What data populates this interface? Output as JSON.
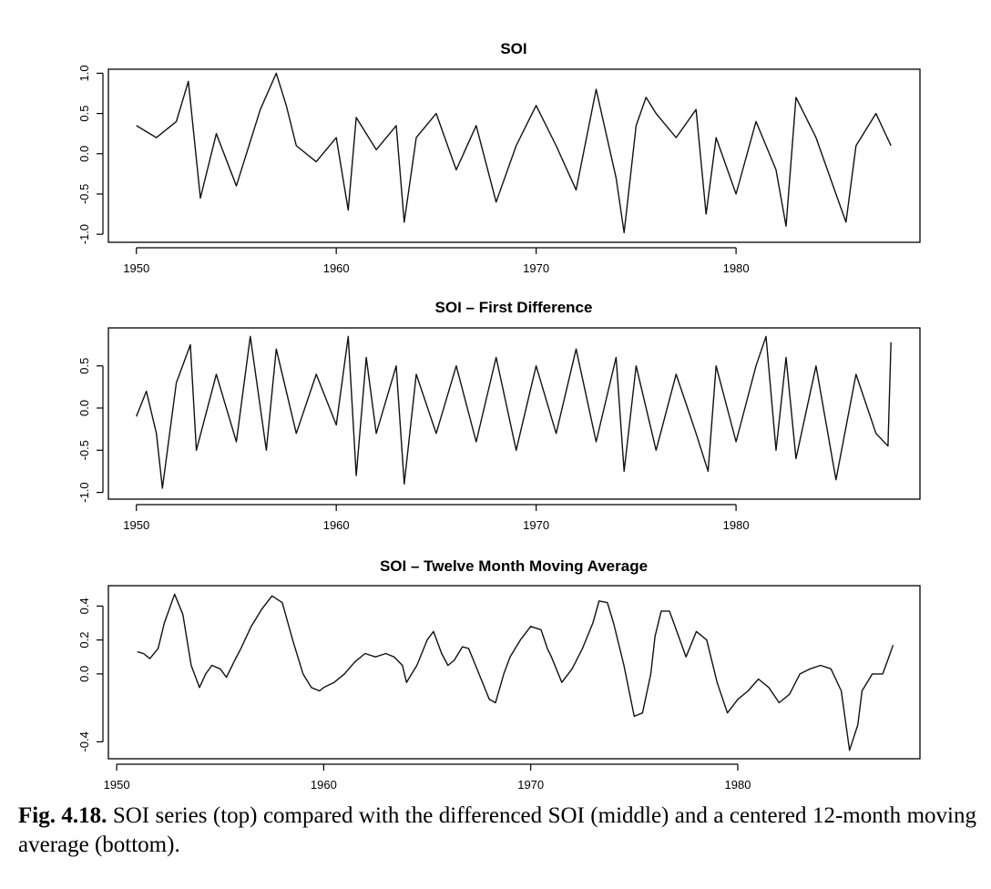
{
  "chart_data": [
    {
      "type": "line",
      "title": "SOI",
      "xlabel": "",
      "ylabel": "",
      "xlim": [
        1950,
        1987.75
      ],
      "ylim": [
        -1.0,
        1.0
      ],
      "x_ticks": [
        "1950",
        "1960",
        "1970",
        "1980"
      ],
      "y_ticks": [
        "-1.0",
        "-0.5",
        "0.0",
        "0.5",
        "1.0"
      ],
      "grid": false,
      "series": [
        {
          "x": [
            1950.0,
            1951.0,
            1952.0,
            1952.6,
            1953.2,
            1954.0,
            1955.0,
            1956.2,
            1957.0,
            1957.5,
            1958.0,
            1959.0,
            1960.0,
            1960.6,
            1961.0,
            1962.0,
            1963.0,
            1963.4,
            1964.0,
            1965.0,
            1966.0,
            1967.0,
            1968.0,
            1969.0,
            1970.0,
            1971.0,
            1972.0,
            1973.0,
            1974.0,
            1974.4,
            1975.0,
            1975.5,
            1976.0,
            1977.0,
            1978.0,
            1978.5,
            1979.0,
            1980.0,
            1981.0,
            1982.0,
            1982.5,
            1983.0,
            1984.0,
            1985.0,
            1985.5,
            1986.0,
            1987.0,
            1987.75
          ],
          "values": [
            0.35,
            0.2,
            0.4,
            0.9,
            -0.55,
            0.25,
            -0.4,
            0.55,
            1.0,
            0.6,
            0.1,
            -0.1,
            0.2,
            -0.7,
            0.45,
            0.05,
            0.35,
            -0.85,
            0.2,
            0.5,
            -0.2,
            0.35,
            -0.6,
            0.1,
            0.6,
            0.1,
            -0.45,
            0.8,
            -0.3,
            -0.98,
            0.35,
            0.7,
            0.5,
            0.2,
            0.55,
            -0.75,
            0.2,
            -0.5,
            0.4,
            -0.2,
            -0.9,
            0.7,
            0.2,
            -0.5,
            -0.85,
            0.1,
            0.5,
            0.1
          ]
        }
      ]
    },
    {
      "type": "line",
      "title": "SOI – First Difference",
      "xlabel": "",
      "ylabel": "",
      "xlim": [
        1950,
        1987.75
      ],
      "ylim": [
        -1.0,
        0.9
      ],
      "x_ticks": [
        "1950",
        "1960",
        "1970",
        "1980"
      ],
      "y_ticks": [
        "-1.0",
        "-0.5",
        "0.0",
        "0.5"
      ],
      "grid": false,
      "series": [
        {
          "x": [
            1950.0,
            1950.5,
            1951.0,
            1951.3,
            1952.0,
            1952.7,
            1953.0,
            1954.0,
            1955.0,
            1955.7,
            1956.5,
            1957.0,
            1958.0,
            1959.0,
            1960.0,
            1960.6,
            1961.0,
            1961.5,
            1962.0,
            1963.0,
            1963.4,
            1964.0,
            1965.0,
            1966.0,
            1967.0,
            1968.0,
            1969.0,
            1970.0,
            1971.0,
            1972.0,
            1973.0,
            1974.0,
            1974.4,
            1975.0,
            1976.0,
            1977.0,
            1978.0,
            1978.6,
            1979.0,
            1980.0,
            1981.0,
            1981.5,
            1982.0,
            1982.5,
            1983.0,
            1984.0,
            1985.0,
            1986.0,
            1987.0,
            1987.6,
            1987.75
          ],
          "values": [
            -0.1,
            0.2,
            -0.3,
            -0.95,
            0.3,
            0.75,
            -0.5,
            0.4,
            -0.4,
            0.85,
            -0.5,
            0.7,
            -0.3,
            0.4,
            -0.2,
            0.85,
            -0.8,
            0.6,
            -0.3,
            0.5,
            -0.9,
            0.4,
            -0.3,
            0.5,
            -0.4,
            0.6,
            -0.5,
            0.5,
            -0.3,
            0.7,
            -0.4,
            0.6,
            -0.75,
            0.5,
            -0.5,
            0.4,
            -0.3,
            -0.75,
            0.5,
            -0.4,
            0.5,
            0.85,
            -0.5,
            0.6,
            -0.6,
            0.5,
            -0.85,
            0.4,
            -0.3,
            -0.45,
            0.78
          ]
        }
      ]
    },
    {
      "type": "line",
      "title": "SOI – Twelve Month Moving Average",
      "xlabel": "",
      "ylabel": "",
      "xlim": [
        1950.5,
        1987.5
      ],
      "ylim": [
        -0.5,
        0.5
      ],
      "x_ticks": [
        "1950",
        "1960",
        "1970",
        "1980"
      ],
      "y_ticks": [
        "-0.4",
        "0.0",
        "0.2",
        "0.4"
      ],
      "grid": false,
      "series": [
        {
          "x": [
            1951.0,
            1951.3,
            1951.6,
            1952.0,
            1952.3,
            1952.8,
            1953.2,
            1953.6,
            1954.0,
            1954.3,
            1954.6,
            1955.0,
            1955.3,
            1955.7,
            1956.0,
            1956.5,
            1957.0,
            1957.5,
            1958.0,
            1958.5,
            1959.0,
            1959.4,
            1959.8,
            1960.0,
            1960.5,
            1961.0,
            1961.5,
            1962.0,
            1962.5,
            1963.0,
            1963.4,
            1963.8,
            1964.0,
            1964.5,
            1965.0,
            1965.3,
            1965.7,
            1966.0,
            1966.3,
            1966.7,
            1967.0,
            1967.5,
            1968.0,
            1968.3,
            1968.7,
            1969.0,
            1969.5,
            1970.0,
            1970.5,
            1970.8,
            1971.0,
            1971.5,
            1972.0,
            1972.5,
            1973.0,
            1973.3,
            1973.7,
            1974.0,
            1974.5,
            1975.0,
            1975.4,
            1975.8,
            1976.0,
            1976.3,
            1976.7,
            1977.0,
            1977.5,
            1978.0,
            1978.5,
            1979.0,
            1979.5,
            1980.0,
            1980.5,
            1981.0,
            1981.5,
            1982.0,
            1982.5,
            1983.0,
            1983.5,
            1984.0,
            1984.5,
            1985.0,
            1985.4,
            1985.8,
            1986.0,
            1986.5,
            1987.0,
            1987.3,
            1987.5
          ],
          "values": [
            0.13,
            0.12,
            0.09,
            0.15,
            0.3,
            0.47,
            0.35,
            0.05,
            -0.08,
            0.0,
            0.05,
            0.03,
            -0.02,
            0.08,
            0.15,
            0.28,
            0.38,
            0.46,
            0.42,
            0.2,
            0.0,
            -0.08,
            -0.1,
            -0.08,
            -0.05,
            0.0,
            0.07,
            0.12,
            0.1,
            0.12,
            0.1,
            0.05,
            -0.05,
            0.05,
            0.2,
            0.25,
            0.12,
            0.05,
            0.08,
            0.16,
            0.15,
            0.0,
            -0.15,
            -0.17,
            0.0,
            0.1,
            0.2,
            0.28,
            0.26,
            0.15,
            0.1,
            -0.05,
            0.03,
            0.15,
            0.3,
            0.43,
            0.42,
            0.3,
            0.05,
            -0.25,
            -0.23,
            0.0,
            0.22,
            0.37,
            0.37,
            0.27,
            0.1,
            0.25,
            0.2,
            -0.05,
            -0.23,
            -0.15,
            -0.1,
            -0.03,
            -0.08,
            -0.17,
            -0.12,
            0.0,
            0.03,
            0.05,
            0.03,
            -0.1,
            -0.45,
            -0.3,
            -0.1,
            0.0,
            0.0,
            0.1,
            0.17
          ]
        }
      ]
    }
  ],
  "caption": {
    "label": "Fig. 4.18.",
    "text": " SOI series (top) compared with the differenced SOI (middle) and a centered 12-month moving average (bottom)."
  }
}
